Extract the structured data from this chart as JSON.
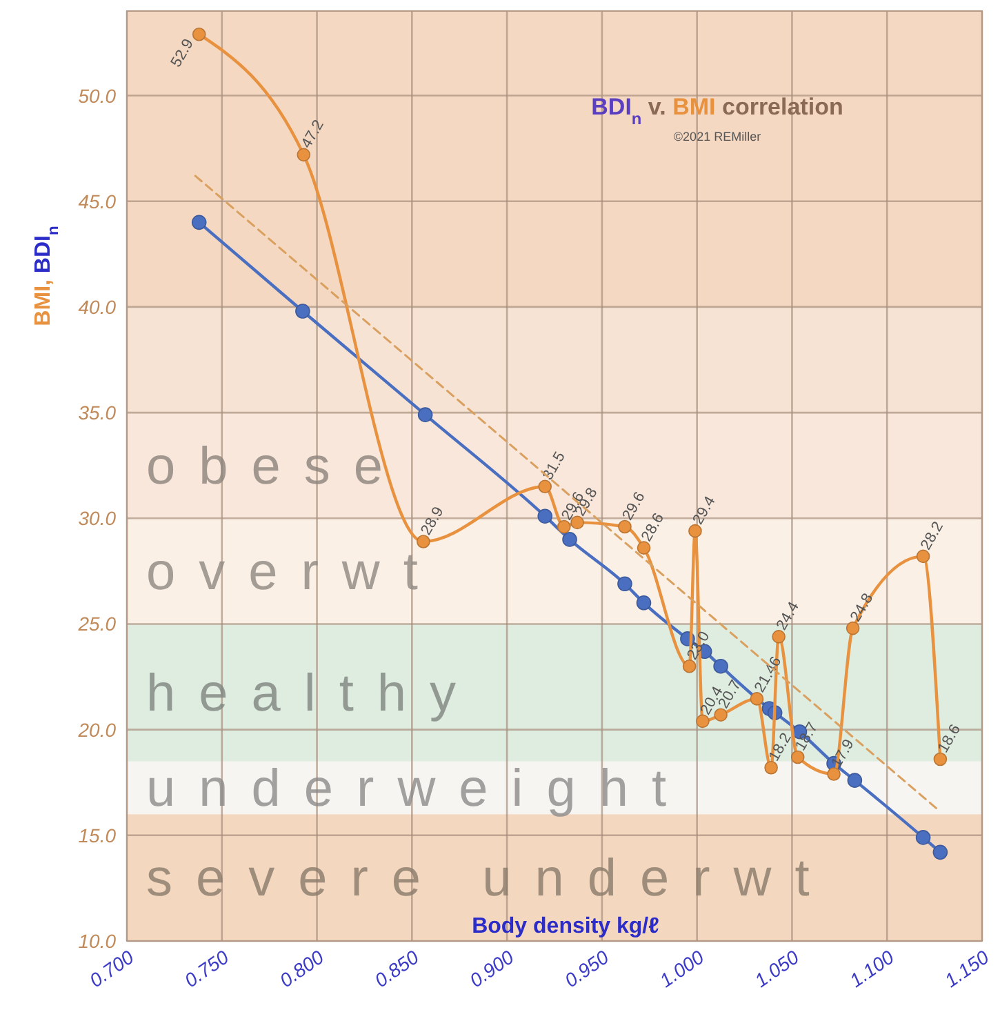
{
  "chart_data": {
    "type": "line",
    "title": "BDI$_{n}$ v. BMI correlation",
    "subtitle": "©2021 REMiller",
    "xlabel": "Body density kg/ℓ",
    "ylabel": "BMI, BDI$_{n}$",
    "xlim": [
      0.7,
      1.15
    ],
    "ylim": [
      10,
      54
    ],
    "xticks": [
      {
        "value": 0.7,
        "label": "0.700"
      },
      {
        "value": 0.75,
        "label": "0.750"
      },
      {
        "value": 0.8,
        "label": "0.800"
      },
      {
        "value": 0.85,
        "label": "0.850"
      },
      {
        "value": 0.9,
        "label": "0.900"
      },
      {
        "value": 0.95,
        "label": "0.950"
      },
      {
        "value": 1.0,
        "label": "1.000"
      },
      {
        "value": 1.05,
        "label": "1.050"
      },
      {
        "value": 1.1,
        "label": "1.100"
      },
      {
        "value": 1.15,
        "label": "1.150"
      }
    ],
    "yticks": [
      {
        "value": 10,
        "label": "10.0"
      },
      {
        "value": 15,
        "label": "15.0"
      },
      {
        "value": 20,
        "label": "20.0"
      },
      {
        "value": 25,
        "label": "25.0"
      },
      {
        "value": 30,
        "label": "30.0"
      },
      {
        "value": 35,
        "label": "35.0"
      },
      {
        "value": 40,
        "label": "40.0"
      },
      {
        "value": 45,
        "label": "45.0"
      },
      {
        "value": 50,
        "label": "50.0"
      }
    ],
    "grid": true,
    "bands": [
      {
        "axis": "y",
        "from": 10,
        "to": 16,
        "label": "severe underwt",
        "color": "#f4d7bf"
      },
      {
        "axis": "y",
        "from": 16,
        "to": 18.5,
        "label": "underweight",
        "color": "#f7f5f2"
      },
      {
        "axis": "y",
        "from": 18.5,
        "to": 25,
        "label": "healthy",
        "color": "#dfece0"
      },
      {
        "axis": "y",
        "from": 25,
        "to": 30,
        "label": "overwt",
        "color": "#fbf0e6"
      },
      {
        "axis": "y",
        "from": 30,
        "to": 35,
        "label": "obese",
        "color": "#f8e7da"
      },
      {
        "axis": "y",
        "from": 35,
        "to": 40,
        "label": null,
        "color": "#f6e3d4"
      },
      {
        "axis": "y",
        "from": 40,
        "to": 54,
        "label": null,
        "color": "#f4d8c2"
      }
    ],
    "series": [
      {
        "color": "#4a6fc0",
        "marker": "circle",
        "x": [
          0.738,
          0.7925,
          0.857,
          0.92,
          0.933,
          0.962,
          0.972,
          0.995,
          1.004,
          1.0125,
          1.038,
          1.041,
          1.054,
          1.072,
          1.083,
          1.119,
          1.128
        ],
        "values": [
          44.0,
          39.8,
          34.9,
          30.1,
          29.0,
          26.9,
          26.0,
          24.3,
          23.7,
          23.0,
          21.0,
          20.8,
          19.9,
          18.4,
          17.6,
          14.9,
          14.2
        ]
      },
      {
        "color": "#e8913f",
        "marker": "circle",
        "x": [
          0.738,
          0.793,
          0.856,
          0.92,
          0.93,
          0.937,
          0.962,
          0.972,
          0.996,
          0.999,
          1.003,
          1.0125,
          1.0315,
          1.039,
          1.043,
          1.053,
          1.072,
          1.082,
          1.119,
          1.128
        ],
        "values": [
          52.9,
          47.2,
          28.9,
          31.5,
          29.6,
          29.8,
          29.6,
          28.6,
          23.0,
          29.4,
          20.4,
          20.7,
          21.46,
          18.2,
          24.4,
          18.7,
          17.9,
          24.8,
          28.2,
          18.6
        ],
        "value_labels": [
          "52.9",
          "47.2",
          "28.9",
          "31.5",
          "29.6",
          "29.8",
          "29.6",
          "28.6",
          "23.0",
          "29.4",
          "20.4",
          "20.7",
          "21.46",
          "18.2",
          "24.4",
          "18.7",
          "17.9",
          "24.8",
          "28.2",
          "18.6"
        ]
      },
      {
        "color": "#d9a060",
        "marker": "none",
        "line_style": "dashed",
        "x": [
          0.736,
          1.127
        ],
        "values": [
          46.2,
          16.2
        ]
      }
    ]
  }
}
